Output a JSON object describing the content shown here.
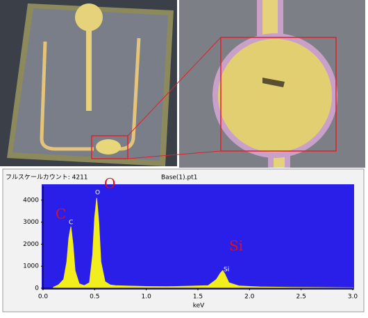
{
  "chart_data": {
    "type": "area",
    "header_left": "フルスケールカウント: 4211",
    "header_right": "Base(1).pt1",
    "x_label": "keV",
    "x": [
      0.1,
      0.15,
      0.2,
      0.23,
      0.25,
      0.27,
      0.29,
      0.31,
      0.35,
      0.4,
      0.45,
      0.48,
      0.5,
      0.52,
      0.54,
      0.56,
      0.6,
      0.65,
      0.7,
      0.8,
      0.9,
      1.0,
      1.2,
      1.4,
      1.6,
      1.68,
      1.72,
      1.74,
      1.76,
      1.8,
      1.9,
      2.1,
      2.4,
      2.7,
      3.0
    ],
    "values": [
      50,
      150,
      400,
      1200,
      2300,
      2800,
      2000,
      800,
      200,
      120,
      250,
      1500,
      3200,
      4100,
      3000,
      1200,
      300,
      150,
      120,
      100,
      90,
      80,
      70,
      90,
      120,
      400,
      700,
      800,
      650,
      250,
      100,
      60,
      40,
      30,
      20
    ],
    "color": "#f2ee1e",
    "background": "#2a1fe8",
    "xlim": [
      0,
      3
    ],
    "xticks": [
      {
        "value": 0,
        "label": "0.0"
      },
      0.5,
      {
        "value": 1,
        "label": "1.0"
      },
      1.5,
      {
        "value": 2,
        "label": "2.0"
      },
      2.5,
      {
        "value": 3,
        "label": "3.0"
      }
    ],
    "ylim": [
      0,
      4500
    ],
    "yticks": [
      0,
      1000,
      2000,
      3000,
      4000
    ],
    "annotations": [
      "C",
      "O",
      "Si"
    ],
    "peak_labels": [
      "C",
      "O",
      "Si"
    ]
  }
}
